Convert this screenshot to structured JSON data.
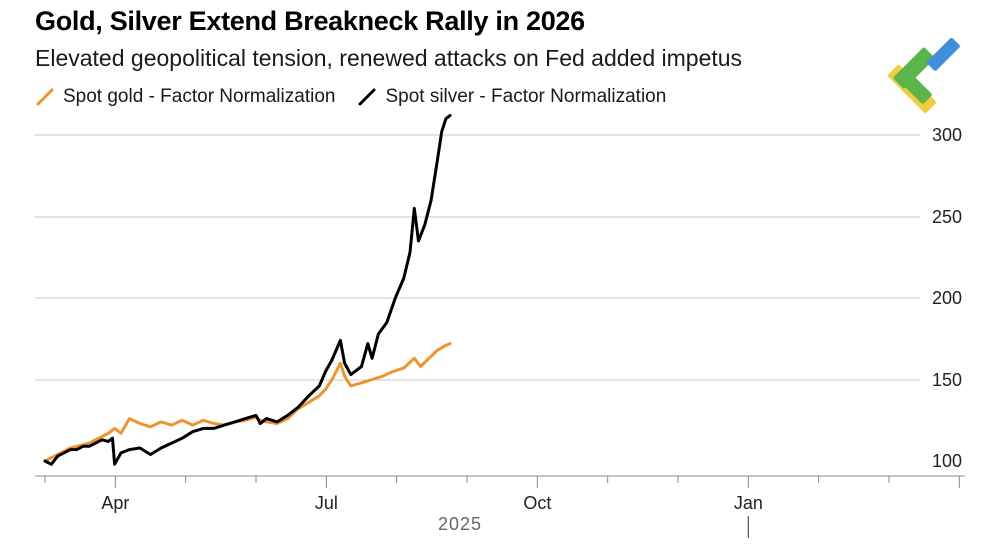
{
  "chart_data": {
    "type": "line",
    "title": "Gold, Silver Extend Breakneck Rally in 2026",
    "subtitle": "Elevated geopolitical tension, renewed attacks on Fed added impetus",
    "xlabel": "",
    "ylabel": "",
    "x_ticks": [
      "Apr",
      "Jul",
      "Oct",
      "Jan"
    ],
    "x_year_label": "2025",
    "y_ticks": [
      "100",
      "150",
      "200",
      "250",
      "300"
    ],
    "ylim": [
      90,
      310
    ],
    "series": [
      {
        "name": "Spot gold - Factor Normalization",
        "color": "#f0952d",
        "points": [
          [
            0,
            100
          ],
          [
            0.03,
            102
          ],
          [
            0.06,
            104
          ],
          [
            0.09,
            106
          ],
          [
            0.12,
            108
          ],
          [
            0.15,
            109
          ],
          [
            0.18,
            110
          ],
          [
            0.21,
            111
          ],
          [
            0.24,
            113
          ],
          [
            0.27,
            115
          ],
          [
            0.3,
            117
          ],
          [
            0.33,
            120
          ],
          [
            0.36,
            117
          ],
          [
            0.4,
            126
          ],
          [
            0.45,
            123
          ],
          [
            0.5,
            121
          ],
          [
            0.55,
            124
          ],
          [
            0.6,
            122
          ],
          [
            0.65,
            125
          ],
          [
            0.7,
            122
          ],
          [
            0.75,
            125
          ],
          [
            0.8,
            123
          ],
          [
            0.85,
            122
          ],
          [
            0.9,
            124
          ],
          [
            0.95,
            125
          ],
          [
            1.0,
            127
          ],
          [
            1.02,
            125
          ],
          [
            1.05,
            124
          ],
          [
            1.1,
            123
          ],
          [
            1.15,
            126
          ],
          [
            1.2,
            132
          ],
          [
            1.25,
            136
          ],
          [
            1.3,
            140
          ],
          [
            1.33,
            144
          ],
          [
            1.36,
            150
          ],
          [
            1.4,
            160
          ],
          [
            1.42,
            152
          ],
          [
            1.45,
            146
          ],
          [
            1.5,
            148
          ],
          [
            1.55,
            150
          ],
          [
            1.6,
            152
          ],
          [
            1.65,
            155
          ],
          [
            1.7,
            157
          ],
          [
            1.75,
            163
          ],
          [
            1.78,
            158
          ],
          [
            1.82,
            163
          ],
          [
            1.86,
            168
          ],
          [
            1.9,
            171
          ],
          [
            1.92,
            172
          ]
        ]
      },
      {
        "name": "Spot silver - Factor Normalization",
        "color": "#000000",
        "points": [
          [
            0,
            100
          ],
          [
            0.03,
            98
          ],
          [
            0.06,
            103
          ],
          [
            0.09,
            105
          ],
          [
            0.12,
            107
          ],
          [
            0.15,
            107
          ],
          [
            0.18,
            109
          ],
          [
            0.21,
            109
          ],
          [
            0.24,
            111
          ],
          [
            0.27,
            113
          ],
          [
            0.3,
            112
          ],
          [
            0.32,
            114
          ],
          [
            0.33,
            98
          ],
          [
            0.36,
            105
          ],
          [
            0.4,
            107
          ],
          [
            0.45,
            108
          ],
          [
            0.5,
            104
          ],
          [
            0.55,
            108
          ],
          [
            0.6,
            111
          ],
          [
            0.65,
            114
          ],
          [
            0.7,
            118
          ],
          [
            0.75,
            120
          ],
          [
            0.8,
            120
          ],
          [
            0.85,
            122
          ],
          [
            0.9,
            124
          ],
          [
            0.95,
            126
          ],
          [
            1.0,
            128
          ],
          [
            1.02,
            123
          ],
          [
            1.05,
            126
          ],
          [
            1.1,
            124
          ],
          [
            1.15,
            128
          ],
          [
            1.2,
            133
          ],
          [
            1.25,
            140
          ],
          [
            1.3,
            146
          ],
          [
            1.33,
            155
          ],
          [
            1.36,
            162
          ],
          [
            1.4,
            174
          ],
          [
            1.42,
            160
          ],
          [
            1.45,
            153
          ],
          [
            1.5,
            158
          ],
          [
            1.53,
            172
          ],
          [
            1.55,
            163
          ],
          [
            1.58,
            178
          ],
          [
            1.62,
            185
          ],
          [
            1.66,
            200
          ],
          [
            1.7,
            212
          ],
          [
            1.73,
            228
          ],
          [
            1.75,
            255
          ],
          [
            1.77,
            235
          ],
          [
            1.8,
            245
          ],
          [
            1.83,
            260
          ],
          [
            1.86,
            285
          ],
          [
            1.88,
            302
          ],
          [
            1.9,
            310
          ],
          [
            1.92,
            312
          ]
        ]
      }
    ]
  }
}
